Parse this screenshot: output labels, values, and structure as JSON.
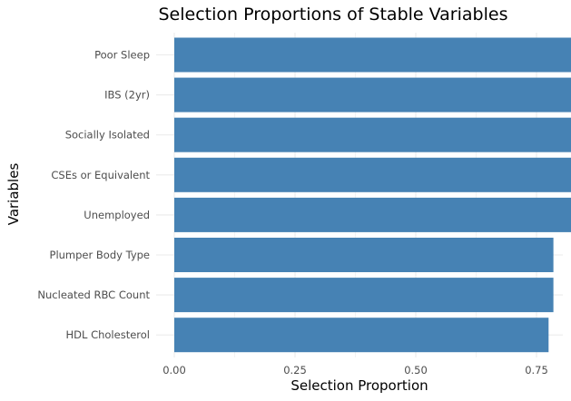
{
  "chart_data": {
    "type": "bar",
    "orientation": "horizontal",
    "title": "Selection Proportions of Stable Variables",
    "xlabel": "Selection Proportion",
    "ylabel": "Variables",
    "categories": [
      "Poor Sleep",
      "IBS (2yr)",
      "Socially Isolated",
      "CSEs or Equivalent",
      "Unemployed",
      "Plumper Body Type",
      "Nucleated RBC Count",
      "HDL Cholesterol"
    ],
    "values": [
      0.885,
      0.865,
      0.845,
      0.845,
      0.835,
      0.785,
      0.785,
      0.775
    ],
    "xlim": [
      0,
      0.9
    ],
    "xticks": [
      0,
      0.25,
      0.5,
      0.75
    ],
    "xtick_labels": [
      "0.00",
      "0.25",
      "0.50",
      "0.75"
    ],
    "grid": true,
    "bar_color": "#4682b4",
    "grid_color": "#ebebeb",
    "legend": "none"
  }
}
